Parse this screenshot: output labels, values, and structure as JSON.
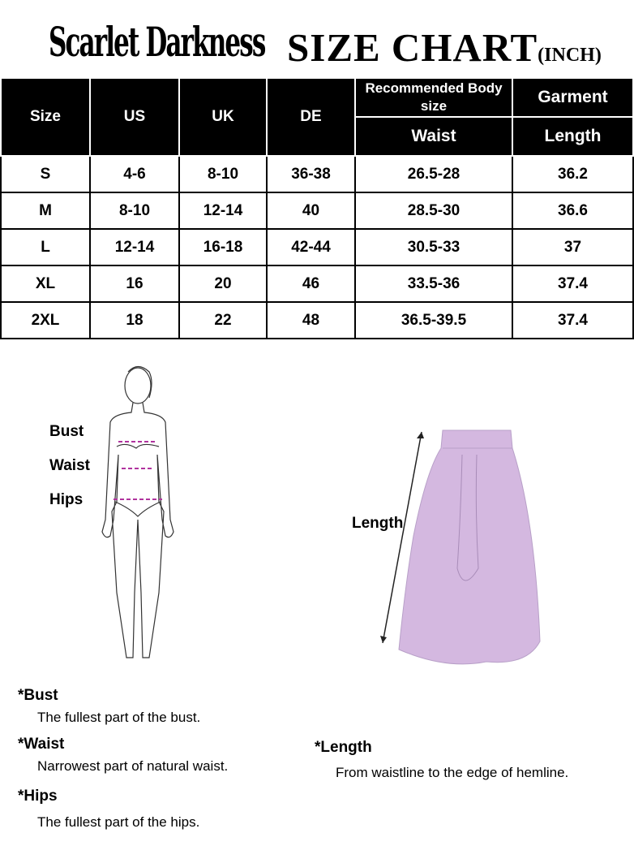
{
  "header": {
    "brand": "Scarlet Darkness",
    "title": "SIZE CHART",
    "unit": "(INCH)"
  },
  "table": {
    "columns": [
      "Size",
      "US",
      "UK",
      "DE"
    ],
    "group_recommended": "Recommended Body size",
    "group_garment": "Garment",
    "sub_waist": "Waist",
    "sub_length": "Length",
    "rows": [
      [
        "S",
        "4-6",
        "8-10",
        "36-38",
        "26.5-28",
        "36.2"
      ],
      [
        "M",
        "8-10",
        "12-14",
        "40",
        "28.5-30",
        "36.6"
      ],
      [
        "L",
        "12-14",
        "16-18",
        "42-44",
        "30.5-33",
        "37"
      ],
      [
        "XL",
        "16",
        "20",
        "46",
        "33.5-36",
        "37.4"
      ],
      [
        "2XL",
        "18",
        "22",
        "48",
        "36.5-39.5",
        "37.4"
      ]
    ]
  },
  "figure": {
    "bust": "Bust",
    "waist": "Waist",
    "hips": "Hips",
    "measure_color": "#b0339e"
  },
  "skirt": {
    "length": "Length",
    "color": "#d4b8e0"
  },
  "notes": [
    {
      "title": "*Bust",
      "text": "The fullest part of the bust."
    },
    {
      "title": "*Waist",
      "text": "Narrowest part of natural waist."
    },
    {
      "title": "*Hips",
      "text": "The fullest part of the hips."
    },
    {
      "title": "*Length",
      "text": "From waistline to the edge of hemline."
    }
  ]
}
